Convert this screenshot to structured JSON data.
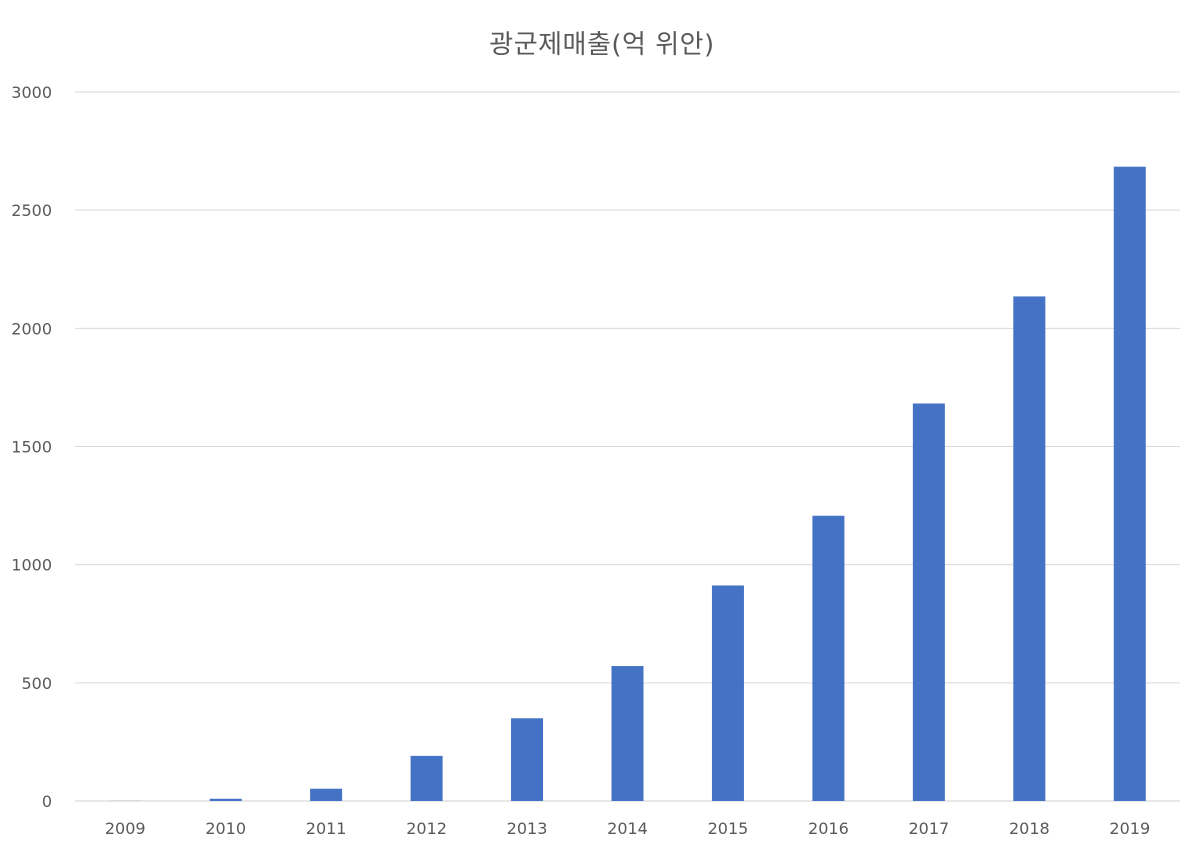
{
  "chart_data": {
    "type": "bar",
    "title": "광군제매출(억 위안)",
    "xlabel": "",
    "ylabel": "",
    "categories": [
      "2009",
      "2010",
      "2011",
      "2012",
      "2013",
      "2014",
      "2015",
      "2016",
      "2017",
      "2018",
      "2019"
    ],
    "values": [
      0.5,
      9.4,
      52,
      191,
      350,
      571,
      912,
      1207,
      1682,
      2135,
      2684
    ],
    "ylim": [
      0,
      3000
    ],
    "yticks": [
      "0",
      "500",
      "1000",
      "1500",
      "2000",
      "2500",
      "3000"
    ],
    "grid": true,
    "legend": "none",
    "bar_color": "#4472c4"
  }
}
